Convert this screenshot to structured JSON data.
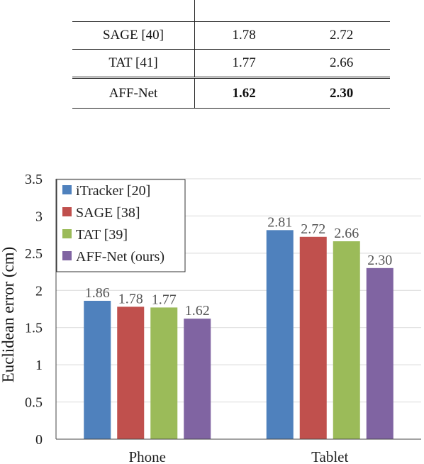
{
  "table": {
    "rows": [
      {
        "method": "",
        "phone": "",
        "tablet": ""
      },
      {
        "method": "SAGE [40]",
        "phone": "1.78",
        "tablet": "2.72"
      },
      {
        "method": "TAT [41]",
        "phone": "1.77",
        "tablet": "2.66"
      },
      {
        "method": "AFF-Net",
        "phone": "1.62",
        "tablet": "2.30"
      }
    ]
  },
  "chart_data": {
    "type": "bar",
    "categories": [
      "Phone",
      "Tablet"
    ],
    "series": [
      {
        "name": "iTracker [20]",
        "values": [
          1.86,
          2.81
        ],
        "color": "#4f81bd"
      },
      {
        "name": "SAGE [38]",
        "values": [
          1.78,
          2.72
        ],
        "color": "#c0504d"
      },
      {
        "name": "TAT [39]",
        "values": [
          1.77,
          2.66
        ],
        "color": "#9bbb59"
      },
      {
        "name": "AFF-Net (ours)",
        "values": [
          1.62,
          2.3
        ],
        "color": "#8064a2"
      }
    ],
    "data_labels": [
      [
        "1.86",
        "2.81"
      ],
      [
        "1.78",
        "2.72"
      ],
      [
        "1.77",
        "2.66"
      ],
      [
        "1.62",
        "2.30"
      ]
    ],
    "ylabel": "Euclidean error (cm)",
    "xlabel": "",
    "ylim": [
      0,
      3.5
    ],
    "yticks": [
      "0",
      "0.5",
      "1",
      "1.5",
      "2",
      "2.5",
      "3",
      "3.5"
    ],
    "grid": true,
    "legend_position": "top-left"
  }
}
